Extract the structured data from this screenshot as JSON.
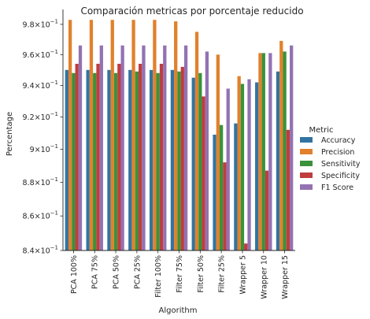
{
  "chart_data": {
    "type": "bar",
    "title": "Comparación metricas por porcentaje reducido",
    "xlabel": "Algorithm",
    "ylabel": "Percentage",
    "yscale": "log",
    "ylim": [
      0.84,
      0.99
    ],
    "grid": false,
    "legend_placement": "right",
    "legend_title": "Metric",
    "categories": [
      "PCA 100%",
      "PCA  75%",
      "PCA  50%",
      "PCA  25%",
      "Filter 100%",
      "Filter 75%",
      "Filter 50%",
      "Filter 25%",
      "Wrapper 5",
      "Wrapper 10",
      "Wrapper 15"
    ],
    "y_ticks": [
      {
        "value": 0.84,
        "mant": "8.4",
        "exp": "−1"
      },
      {
        "value": 0.86,
        "mant": "8.6",
        "exp": "−1"
      },
      {
        "value": 0.88,
        "mant": "8.8",
        "exp": "−1"
      },
      {
        "value": 0.9,
        "mant": "9",
        "exp": "−1"
      },
      {
        "value": 0.92,
        "mant": "9.2",
        "exp": "−1"
      },
      {
        "value": 0.94,
        "mant": "9.4",
        "exp": "−1"
      },
      {
        "value": 0.96,
        "mant": "9.6",
        "exp": "−1"
      },
      {
        "value": 0.98,
        "mant": "9.8",
        "exp": "−1"
      }
    ],
    "series": [
      {
        "name": "Accuracy",
        "color": "#3274a1",
        "values": [
          0.95,
          0.95,
          0.95,
          0.95,
          0.95,
          0.95,
          0.945,
          0.909,
          0.916,
          0.942,
          0.949
        ]
      },
      {
        "name": "Precision",
        "color": "#e1812c",
        "values": [
          0.983,
          0.983,
          0.983,
          0.983,
          0.983,
          0.982,
          0.975,
          0.96,
          0.946,
          0.961,
          0.969
        ]
      },
      {
        "name": "Sensitivity",
        "color": "#3a923a",
        "values": [
          0.948,
          0.948,
          0.948,
          0.949,
          0.948,
          0.949,
          0.948,
          0.915,
          0.941,
          0.961,
          0.962
        ]
      },
      {
        "name": "Specificity",
        "color": "#c03d3e",
        "values": [
          0.954,
          0.954,
          0.954,
          0.954,
          0.954,
          0.952,
          0.933,
          0.892,
          0.844,
          0.887,
          0.912
        ]
      },
      {
        "name": "F1 Score",
        "color": "#9372b2",
        "values": [
          0.966,
          0.966,
          0.966,
          0.966,
          0.966,
          0.966,
          0.962,
          0.938,
          0.944,
          0.961,
          0.966
        ]
      }
    ]
  }
}
